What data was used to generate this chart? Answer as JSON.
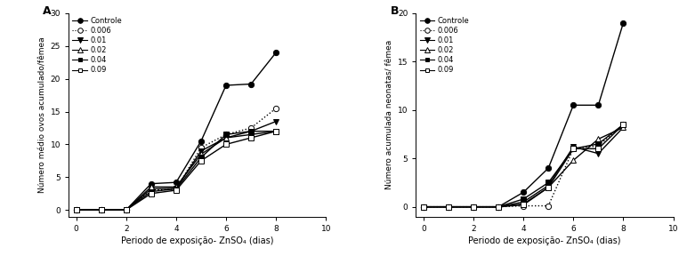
{
  "panel_A": {
    "title": "A",
    "ylabel": "Número médio ovos acumulado/fêmea",
    "xlabel": "Periodo de exposição- ZnSO₄ (dias)",
    "ylim": [
      -1,
      30
    ],
    "xlim": [
      -0.3,
      10
    ],
    "yticks": [
      0,
      5,
      10,
      15,
      20,
      25,
      30
    ],
    "xticks": [
      0,
      2,
      4,
      6,
      8,
      10
    ],
    "series": {
      "Controle": {
        "x": [
          0,
          1,
          2,
          3,
          4,
          5,
          6,
          7,
          8
        ],
        "y": [
          0,
          0,
          0,
          4.0,
          4.2,
          10.5,
          19.0,
          19.2,
          24.0
        ],
        "linestyle": "-",
        "marker": "o",
        "markerfacecolor": "black",
        "color": "black",
        "markersize": 4.5,
        "linewidth": 1.0
      },
      "0.006": {
        "x": [
          0,
          1,
          2,
          3,
          4,
          5,
          6,
          7,
          8
        ],
        "y": [
          0,
          0,
          0,
          3.0,
          3.2,
          9.5,
          11.5,
          12.5,
          15.5
        ],
        "linestyle": ":",
        "marker": "o",
        "markerfacecolor": "white",
        "color": "black",
        "markersize": 4.5,
        "linewidth": 1.0
      },
      "0.01": {
        "x": [
          0,
          1,
          2,
          3,
          4,
          5,
          6,
          7,
          8
        ],
        "y": [
          0,
          0,
          0,
          3.2,
          3.3,
          9.0,
          11.0,
          12.0,
          13.5
        ],
        "linestyle": "-",
        "marker": "v",
        "markerfacecolor": "black",
        "color": "black",
        "markersize": 4.5,
        "linewidth": 1.0
      },
      "0.02": {
        "x": [
          0,
          1,
          2,
          3,
          4,
          5,
          6,
          7,
          8
        ],
        "y": [
          0,
          0,
          0,
          3.5,
          3.5,
          8.5,
          11.0,
          11.5,
          12.0
        ],
        "linestyle": "-",
        "marker": "^",
        "markerfacecolor": "white",
        "color": "black",
        "markersize": 4.5,
        "linewidth": 1.0
      },
      "0.04": {
        "x": [
          0,
          1,
          2,
          3,
          4,
          5,
          6,
          7,
          8
        ],
        "y": [
          0,
          0,
          0,
          2.8,
          3.2,
          8.0,
          11.5,
          12.0,
          12.0
        ],
        "linestyle": "-",
        "marker": "s",
        "markerfacecolor": "black",
        "color": "black",
        "markersize": 4.0,
        "linewidth": 1.0
      },
      "0.09": {
        "x": [
          0,
          1,
          2,
          3,
          4,
          5,
          6,
          7,
          8
        ],
        "y": [
          0,
          0,
          0,
          2.5,
          3.0,
          7.5,
          10.0,
          11.0,
          12.0
        ],
        "linestyle": "-",
        "marker": "s",
        "markerfacecolor": "white",
        "color": "black",
        "markersize": 4.0,
        "linewidth": 1.0
      }
    }
  },
  "panel_B": {
    "title": "B",
    "ylabel": "Número acumulada neonatas/ fêmea",
    "xlabel": "Periodo de exposição- ZnSO₄ (dias)",
    "ylim": [
      -1,
      20
    ],
    "xlim": [
      -0.3,
      10
    ],
    "yticks": [
      0,
      5,
      10,
      15,
      20
    ],
    "xticks": [
      0,
      2,
      4,
      6,
      8,
      10
    ],
    "series": {
      "Controle": {
        "x": [
          0,
          1,
          2,
          3,
          4,
          5,
          6,
          7,
          8
        ],
        "y": [
          0,
          0,
          0,
          0,
          1.5,
          4.0,
          10.5,
          10.5,
          19.0
        ],
        "linestyle": "-",
        "marker": "o",
        "markerfacecolor": "black",
        "color": "black",
        "markersize": 4.5,
        "linewidth": 1.0
      },
      "0.006": {
        "x": [
          0,
          1,
          2,
          3,
          4,
          5,
          6,
          7,
          8
        ],
        "y": [
          0,
          0,
          0,
          0,
          0.1,
          0.1,
          6.0,
          6.3,
          8.5
        ],
        "linestyle": ":",
        "marker": "o",
        "markerfacecolor": "white",
        "color": "black",
        "markersize": 4.5,
        "linewidth": 1.0
      },
      "0.01": {
        "x": [
          0,
          1,
          2,
          3,
          4,
          5,
          6,
          7,
          8
        ],
        "y": [
          0,
          0,
          0,
          0,
          0.5,
          2.2,
          6.2,
          5.5,
          8.2
        ],
        "linestyle": "-",
        "marker": "v",
        "markerfacecolor": "black",
        "color": "black",
        "markersize": 4.5,
        "linewidth": 1.0
      },
      "0.02": {
        "x": [
          0,
          1,
          2,
          3,
          4,
          5,
          6,
          7,
          8
        ],
        "y": [
          0,
          0,
          0,
          0,
          0.3,
          2.0,
          4.8,
          7.0,
          8.2
        ],
        "linestyle": "-",
        "marker": "^",
        "markerfacecolor": "white",
        "color": "black",
        "markersize": 4.5,
        "linewidth": 1.0
      },
      "0.04": {
        "x": [
          0,
          1,
          2,
          3,
          4,
          5,
          6,
          7,
          8
        ],
        "y": [
          0,
          0,
          0,
          0,
          0.8,
          2.5,
          6.0,
          6.5,
          8.5
        ],
        "linestyle": "-",
        "marker": "s",
        "markerfacecolor": "black",
        "color": "black",
        "markersize": 4.0,
        "linewidth": 1.0
      },
      "0.09": {
        "x": [
          0,
          1,
          2,
          3,
          4,
          5,
          6,
          7,
          8
        ],
        "y": [
          0,
          0,
          0,
          0,
          0.2,
          2.0,
          6.0,
          6.0,
          8.5
        ],
        "linestyle": "-",
        "marker": "s",
        "markerfacecolor": "white",
        "color": "black",
        "markersize": 4.0,
        "linewidth": 1.0
      }
    }
  },
  "series_order": [
    "Controle",
    "0.006",
    "0.01",
    "0.02",
    "0.04",
    "0.09"
  ],
  "legend_markers": {
    "Controle": [
      "o",
      "black",
      "-"
    ],
    "0.006": [
      "o",
      "white",
      ":"
    ],
    "0.01": [
      "v",
      "black",
      "-"
    ],
    "0.02": [
      "^",
      "white",
      "-"
    ],
    "0.04": [
      "s",
      "black",
      "-"
    ],
    "0.09": [
      "s",
      "white",
      "-"
    ]
  }
}
